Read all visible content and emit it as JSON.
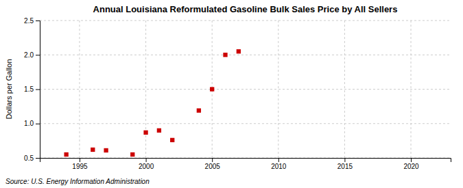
{
  "chart_data": {
    "type": "scatter",
    "title": "Annual Louisiana Reformulated Gasoline Bulk Sales Price by All Sellers",
    "ylabel": "Dollars per Gallon",
    "annotation": "Source: U.S. Energy Information Administration",
    "x": [
      1994,
      1996,
      1997,
      1999,
      2000,
      2001,
      2002,
      2004,
      2005,
      2006,
      2007
    ],
    "values": [
      0.55,
      0.62,
      0.61,
      0.55,
      0.87,
      0.9,
      0.76,
      1.19,
      1.5,
      2.0,
      2.05
    ],
    "color": "#cc0000",
    "marker": "square",
    "xlim": [
      1992,
      2023
    ],
    "xticks": [
      1995,
      2000,
      2005,
      2010,
      2015,
      2020
    ],
    "ylim": [
      0.5,
      2.5
    ],
    "yticks": [
      0.5,
      {
        "value": 1.0,
        "label": "1.0"
      },
      1.5,
      {
        "value": 2.0,
        "label": "2.0"
      },
      2.5
    ],
    "grid": true
  }
}
